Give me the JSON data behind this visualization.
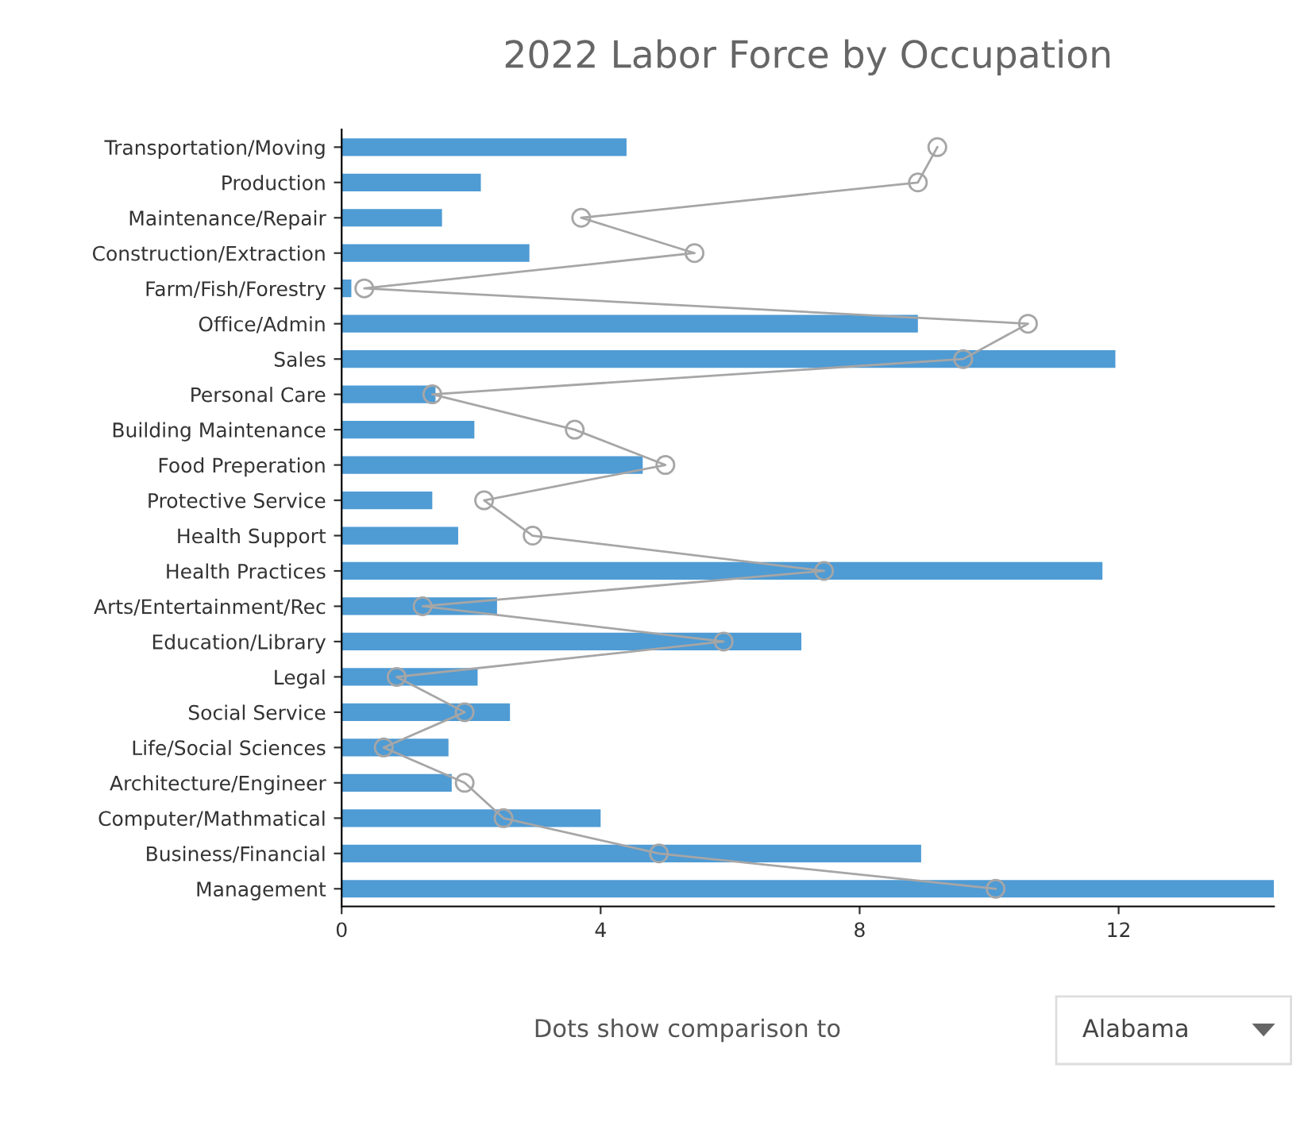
{
  "chart_data": {
    "type": "bar",
    "orientation": "horizontal",
    "title": "2022 Labor Force by Occupation",
    "categories": [
      "Transportation/Moving",
      "Production",
      "Maintenance/Repair",
      "Construction/Extraction",
      "Farm/Fish/Forestry",
      "Office/Admin",
      "Sales",
      "Personal Care",
      "Building Maintenance",
      "Food Preperation",
      "Protective Service",
      "Health Support",
      "Health Practices",
      "Arts/Entertainment/Rec",
      "Education/Library",
      "Legal",
      "Social Service",
      "Life/Social Sciences",
      "Architecture/Engineer",
      "Computer/Mathmatical",
      "Business/Financial",
      "Management"
    ],
    "series": [
      {
        "color": "#4f9bd4",
        "values": [
          4.4,
          2.15,
          1.55,
          2.9,
          0.15,
          8.9,
          11.95,
          1.45,
          2.05,
          4.65,
          1.4,
          1.8,
          11.75,
          2.4,
          7.1,
          2.1,
          2.6,
          1.65,
          1.7,
          4.0,
          8.95,
          14.4
        ]
      },
      {
        "type": "line",
        "color": "#a6a6a6",
        "marker": "circle",
        "values": [
          9.2,
          8.9,
          3.7,
          5.45,
          0.35,
          10.6,
          9.6,
          1.4,
          3.6,
          5.0,
          2.2,
          2.95,
          7.45,
          1.25,
          5.9,
          0.85,
          1.9,
          0.65,
          1.9,
          2.5,
          4.9,
          10.1
        ]
      }
    ],
    "xlim": [
      0,
      14.4
    ],
    "xticks": [
      0,
      4,
      8,
      12
    ],
    "grid": false,
    "legend": false,
    "annotations": [
      "Dots show comparison to",
      "Alabama"
    ]
  }
}
